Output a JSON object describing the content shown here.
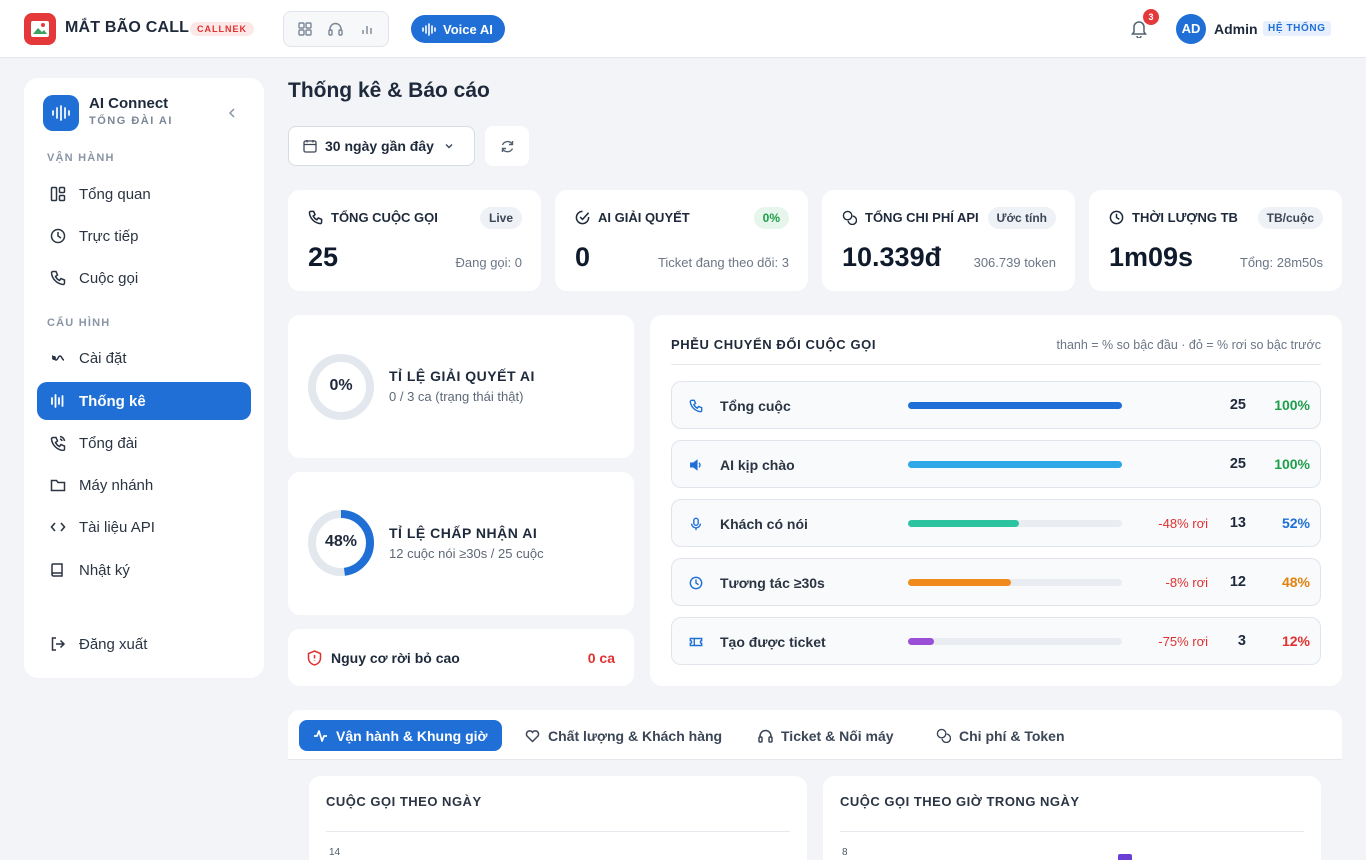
{
  "header": {
    "brand": "MẮT BÃO CALL",
    "brand_tag": "CALLNEK",
    "voice_label": "Voice AI",
    "notification_count": "3",
    "avatar_initials": "AD",
    "user_name": "Admin",
    "user_role": "HỆ THỐNG",
    "icon_group": [
      "grid-icon",
      "headset-icon",
      "bar-chart-icon"
    ]
  },
  "sidebar": {
    "title": "AI Connect",
    "subtitle": "TỔNG ĐÀI AI",
    "section_ops": "VẬN HÀNH",
    "section_config": "CẤU HÌNH",
    "items": [
      {
        "label": "Tổng quan",
        "icon": "dashboard-icon"
      },
      {
        "label": "Trực tiếp",
        "icon": "clock-icon"
      },
      {
        "label": "Cuộc gọi",
        "icon": "phone-icon"
      },
      {
        "label": "Cài đặt",
        "icon": "settings-icon"
      },
      {
        "label": "Thống kê",
        "icon": "bar-chart-icon",
        "active": true
      },
      {
        "label": "Tổng đài",
        "icon": "phone-call-icon"
      },
      {
        "label": "Máy nhánh",
        "icon": "folder-icon"
      },
      {
        "label": "Tài liệu API",
        "icon": "code-icon"
      },
      {
        "label": "Nhật ký",
        "icon": "book-icon"
      }
    ],
    "logout": "Đăng xuất"
  },
  "page": {
    "title": "Thống kê & Báo cáo",
    "range": "30 ngày gần đây"
  },
  "kpis": [
    {
      "label": "TỔNG CUỘC GỌI",
      "tag": "Live",
      "value": "25",
      "sub": "Đang gọi: 0"
    },
    {
      "label": "AI GIẢI QUYẾT",
      "tag": "0%",
      "value": "0",
      "sub": "Ticket đang theo dõi: 3"
    },
    {
      "label": "TỔNG CHI PHÍ API",
      "tag": "Ước tính",
      "value": "10.339đ",
      "sub": "306.739 token"
    },
    {
      "label": "THỜI LƯỢNG TB",
      "tag": "TB/cuộc",
      "value": "1m09s",
      "sub": "Tổng: 28m50s"
    }
  ],
  "rates": [
    {
      "value_text": "0%",
      "fraction": 0,
      "title": "TỈ LỆ GIẢI QUYẾT AI",
      "sub": "0 / 3 ca (trạng thái thật)"
    },
    {
      "value_text": "48%",
      "fraction": 0.48,
      "title": "TỈ LỆ CHẤP NHẬN AI",
      "sub": "12 cuộc nói ≥30s / 25 cuộc"
    }
  ],
  "risk": {
    "label": "Nguy cơ rời bỏ cao",
    "value": "0 ca"
  },
  "funnel": {
    "title": "PHỄU CHUYỂN ĐỔI CUỘC GỌI",
    "note": "thanh = % so bậc đầu · đỏ = % rơi so bậc trước",
    "steps": [
      {
        "label": "Tổng cuộc",
        "icon": "phone-icon",
        "count": "25",
        "pct": "100%",
        "fraction": 1.0,
        "drop": "",
        "bar_color": "#1f6fd6",
        "pct_color": "#1e9e4a"
      },
      {
        "label": "AI kịp chào",
        "icon": "speaker-icon",
        "count": "25",
        "pct": "100%",
        "fraction": 1.0,
        "drop": "",
        "bar_color": "#2fa8e8",
        "pct_color": "#1e9e4a"
      },
      {
        "label": "Khách có nói",
        "icon": "mic-icon",
        "count": "13",
        "pct": "52%",
        "fraction": 0.52,
        "drop": "-48% rơi",
        "bar_color": "#2cc4a0",
        "pct_color": "#1f6fd6"
      },
      {
        "label": "Tương tác ≥30s",
        "icon": "clock-icon",
        "count": "12",
        "pct": "48%",
        "fraction": 0.48,
        "drop": "-8% rơi",
        "bar_color": "#f08a1c",
        "pct_color": "#e0820f"
      },
      {
        "label": "Tạo được ticket",
        "icon": "ticket-icon",
        "count": "3",
        "pct": "12%",
        "fraction": 0.12,
        "drop": "-75% rơi",
        "bar_color": "#9b4fd6",
        "pct_color": "#e03131"
      }
    ]
  },
  "tabs": [
    {
      "label": "Vận hành & Khung giờ",
      "icon": "activity-icon",
      "active": true
    },
    {
      "label": "Chất lượng & Khách hàng",
      "icon": "heart-icon"
    },
    {
      "label": "Ticket & Nối máy",
      "icon": "headset-icon"
    },
    {
      "label": "Chi phí & Token",
      "icon": "coins-icon"
    }
  ],
  "charts": [
    {
      "title": "CUỘC GỌI THEO NGÀY",
      "tick": "14"
    },
    {
      "title": "CUỘC GỌI THEO GIỜ TRONG NGÀY",
      "tick": "8"
    }
  ]
}
